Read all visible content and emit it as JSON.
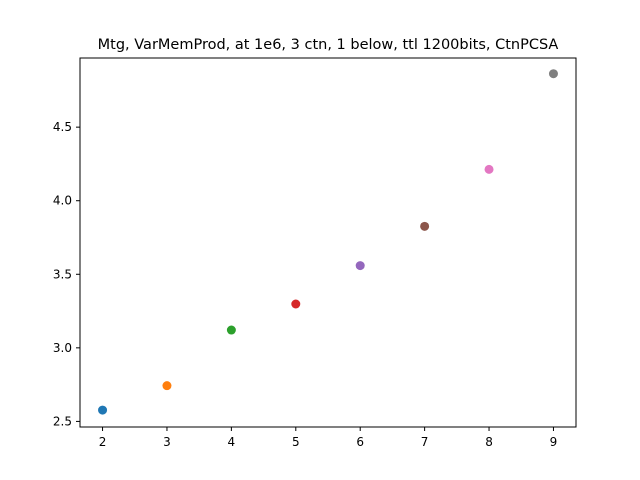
{
  "chart_data": {
    "type": "scatter",
    "title": "Mtg, VarMemProd, at 1e6, 3 ctn, 1 below, ttl 1200bits, CtnPCSA",
    "xlabel": "",
    "ylabel": "",
    "xlim": [
      1.65,
      9.35
    ],
    "ylim": [
      2.462,
      4.97
    ],
    "xticks": [
      2,
      3,
      4,
      5,
      6,
      7,
      8,
      9
    ],
    "xtick_labels": [
      "2",
      "3",
      "4",
      "5",
      "6",
      "7",
      "8",
      "9"
    ],
    "yticks": [
      2.5,
      3.0,
      3.5,
      4.0,
      4.5
    ],
    "ytick_labels": [
      "2.5",
      "3.0",
      "3.5",
      "4.0",
      "4.5"
    ],
    "grid": false,
    "legend": false,
    "points": [
      {
        "x": 2,
        "y": 2.577,
        "color": "#1f77b4"
      },
      {
        "x": 3,
        "y": 2.743,
        "color": "#ff7f0e"
      },
      {
        "x": 4,
        "y": 3.121,
        "color": "#2ca02c"
      },
      {
        "x": 5,
        "y": 3.298,
        "color": "#d62728"
      },
      {
        "x": 6,
        "y": 3.559,
        "color": "#9467bd"
      },
      {
        "x": 7,
        "y": 3.826,
        "color": "#8c564b"
      },
      {
        "x": 8,
        "y": 4.213,
        "color": "#e377c2"
      },
      {
        "x": 9,
        "y": 4.863,
        "color": "#7f7f7f"
      }
    ]
  }
}
